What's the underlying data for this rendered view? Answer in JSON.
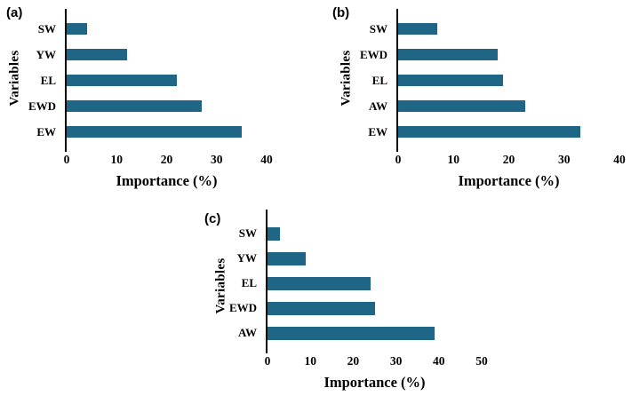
{
  "figure": {
    "background": "#ffffff"
  },
  "colors": {
    "bar": "#1f6585",
    "axis": "#0a0a0a",
    "text": "#000000"
  },
  "chart_data": [
    {
      "type": "bar",
      "orientation": "horizontal",
      "panel_label": "(a)",
      "title": "",
      "xlabel": "Importance (%)",
      "ylabel": "Variables",
      "categories": [
        "SW",
        "YW",
        "EL",
        "EWD",
        "EW"
      ],
      "values": [
        4,
        12,
        22,
        27,
        35
      ],
      "xticks": [
        0,
        10,
        20,
        30,
        40
      ],
      "xlim": [
        0,
        40
      ],
      "grid": false,
      "legend": false
    },
    {
      "type": "bar",
      "orientation": "horizontal",
      "panel_label": "(b)",
      "title": "",
      "xlabel": "Importance (%)",
      "ylabel": "Variables",
      "categories": [
        "SW",
        "EWD",
        "EL",
        "AW",
        "EW"
      ],
      "values": [
        7,
        18,
        19,
        23,
        33
      ],
      "xticks": [
        0,
        10,
        20,
        30,
        40
      ],
      "xlim": [
        0,
        40
      ],
      "grid": false,
      "legend": false
    },
    {
      "type": "bar",
      "orientation": "horizontal",
      "panel_label": "(c)",
      "title": "",
      "xlabel": "Importance (%)",
      "ylabel": "Variables",
      "categories": [
        "SW",
        "YW",
        "EL",
        "EWD",
        "AW"
      ],
      "values": [
        3,
        9,
        24,
        25,
        39
      ],
      "xticks": [
        0,
        10,
        20,
        30,
        40,
        50
      ],
      "xlim": [
        0,
        50
      ],
      "grid": false,
      "legend": false
    }
  ]
}
